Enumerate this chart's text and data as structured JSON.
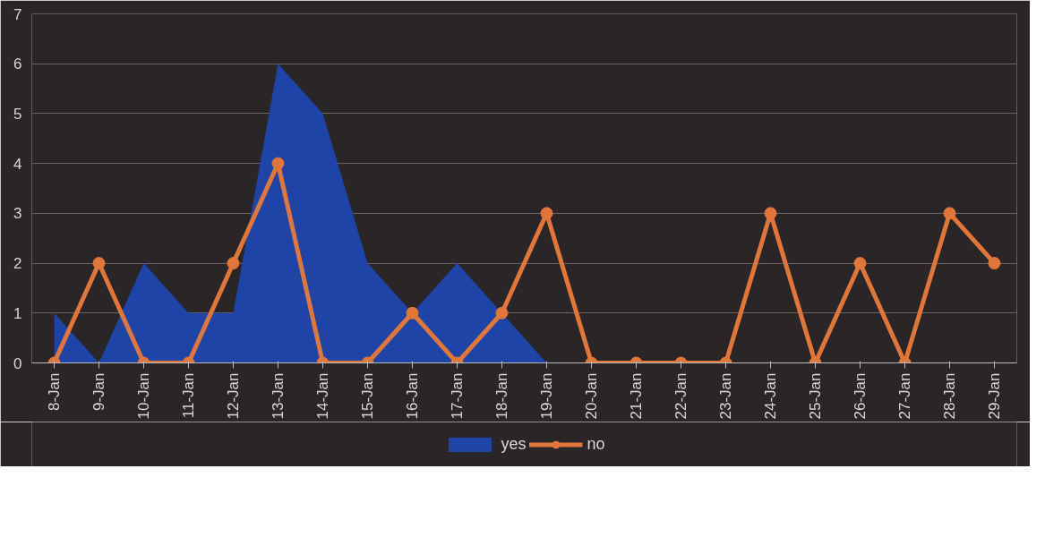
{
  "chart_data": {
    "type": "line",
    "categories": [
      "8-Jan",
      "9-Jan",
      "10-Jan",
      "11-Jan",
      "12-Jan",
      "13-Jan",
      "14-Jan",
      "15-Jan",
      "16-Jan",
      "17-Jan",
      "18-Jan",
      "19-Jan",
      "20-Jan",
      "21-Jan",
      "22-Jan",
      "23-Jan",
      "24-Jan",
      "25-Jan",
      "26-Jan",
      "27-Jan",
      "28-Jan",
      "29-Jan"
    ],
    "series": [
      {
        "name": "yes",
        "type": "area",
        "color": "#1e44a8",
        "values": [
          1,
          0,
          2,
          1,
          1,
          6,
          5,
          2,
          1,
          2,
          1,
          0,
          0,
          0,
          0,
          0,
          0,
          0,
          0,
          0,
          0,
          0
        ]
      },
      {
        "name": "no",
        "marker": "circle",
        "color": "#e0763a",
        "values": [
          0,
          2,
          0,
          0,
          2,
          4,
          0,
          0,
          1,
          0,
          1,
          3,
          0,
          0,
          0,
          0,
          3,
          0,
          2,
          0,
          3,
          2
        ]
      }
    ],
    "ylim": [
      0,
      7
    ],
    "yticks": [
      0,
      1,
      2,
      3,
      4,
      5,
      6,
      7
    ],
    "grid": "y",
    "legend": "bottom",
    "line_style": "solid"
  }
}
